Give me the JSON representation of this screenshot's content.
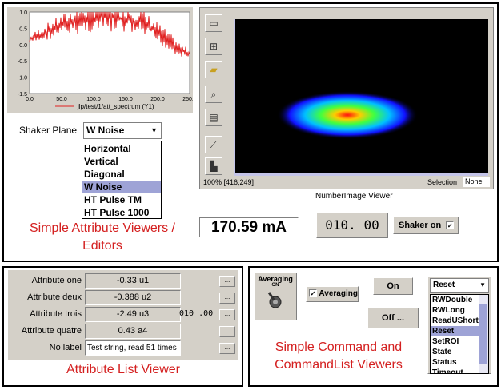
{
  "spectrum_chart": {
    "legend": "jlp/test/1/att_spectrum (Y1)",
    "y_ticks": [
      "1.0",
      "0.5",
      "0.0",
      "-0.5",
      "-1.0",
      "-1.5"
    ],
    "x_ticks": [
      "0.0",
      "50.0",
      "100.0",
      "150.0",
      "200.0",
      "250.0"
    ],
    "line_color": "#e02020"
  },
  "shaker_plane": {
    "label": "Shaker Plane",
    "selected": "W Noise",
    "options": [
      "Horizontal",
      "Vertical",
      "Diagonal",
      "W Noise",
      "HT Pulse TM",
      "HT Pulse 1000"
    ]
  },
  "image_viewer": {
    "status": "100% [416,249]",
    "selection_label": "Selection",
    "selection_value": "None",
    "caption": "NumberImage Viewer",
    "tools": [
      "select-rect-icon",
      "zoom-fit-icon",
      "folder-open-icon",
      "magnifier-icon",
      "table-icon",
      "profile-chart-icon",
      "histogram-icon"
    ]
  },
  "scalar_viewers": {
    "current_value": "170.59 mA",
    "wheel_value": "010. 00",
    "shaker_label": "Shaker on",
    "shaker_checked": "✓"
  },
  "captions": {
    "simple_line1": "Simple Attribute Viewers /",
    "simple_line2": "Editors",
    "attr_list": "Attribute List Viewer",
    "command_line1": "Simple Command and",
    "command_line2": "CommandList Viewers"
  },
  "attribute_list": {
    "rows": [
      {
        "label": "Attribute one",
        "value": "-0.33 u1"
      },
      {
        "label": "Attribute deux",
        "value": "-0.388 u2"
      },
      {
        "label": "Attribute trois",
        "value": "-2.49 u3"
      },
      {
        "label": "Attribute quatre",
        "value": "0.43 a4"
      },
      {
        "label": "No label",
        "value": "Test string, read 51 times"
      }
    ],
    "wheel": "010 .00",
    "button_label": "..."
  },
  "commands": {
    "averaging_title": "Averaging",
    "averaging_state": "ON",
    "averaging_check_label": "Averaging",
    "averaging_checked": "✓",
    "on_label": "On",
    "off_label": "Off ...",
    "list_selected": "Reset",
    "list_items": [
      "RWDouble",
      "RWLong",
      "ReadUShort",
      "Reset",
      "SetROI",
      "State",
      "Status",
      "Timeout"
    ]
  }
}
